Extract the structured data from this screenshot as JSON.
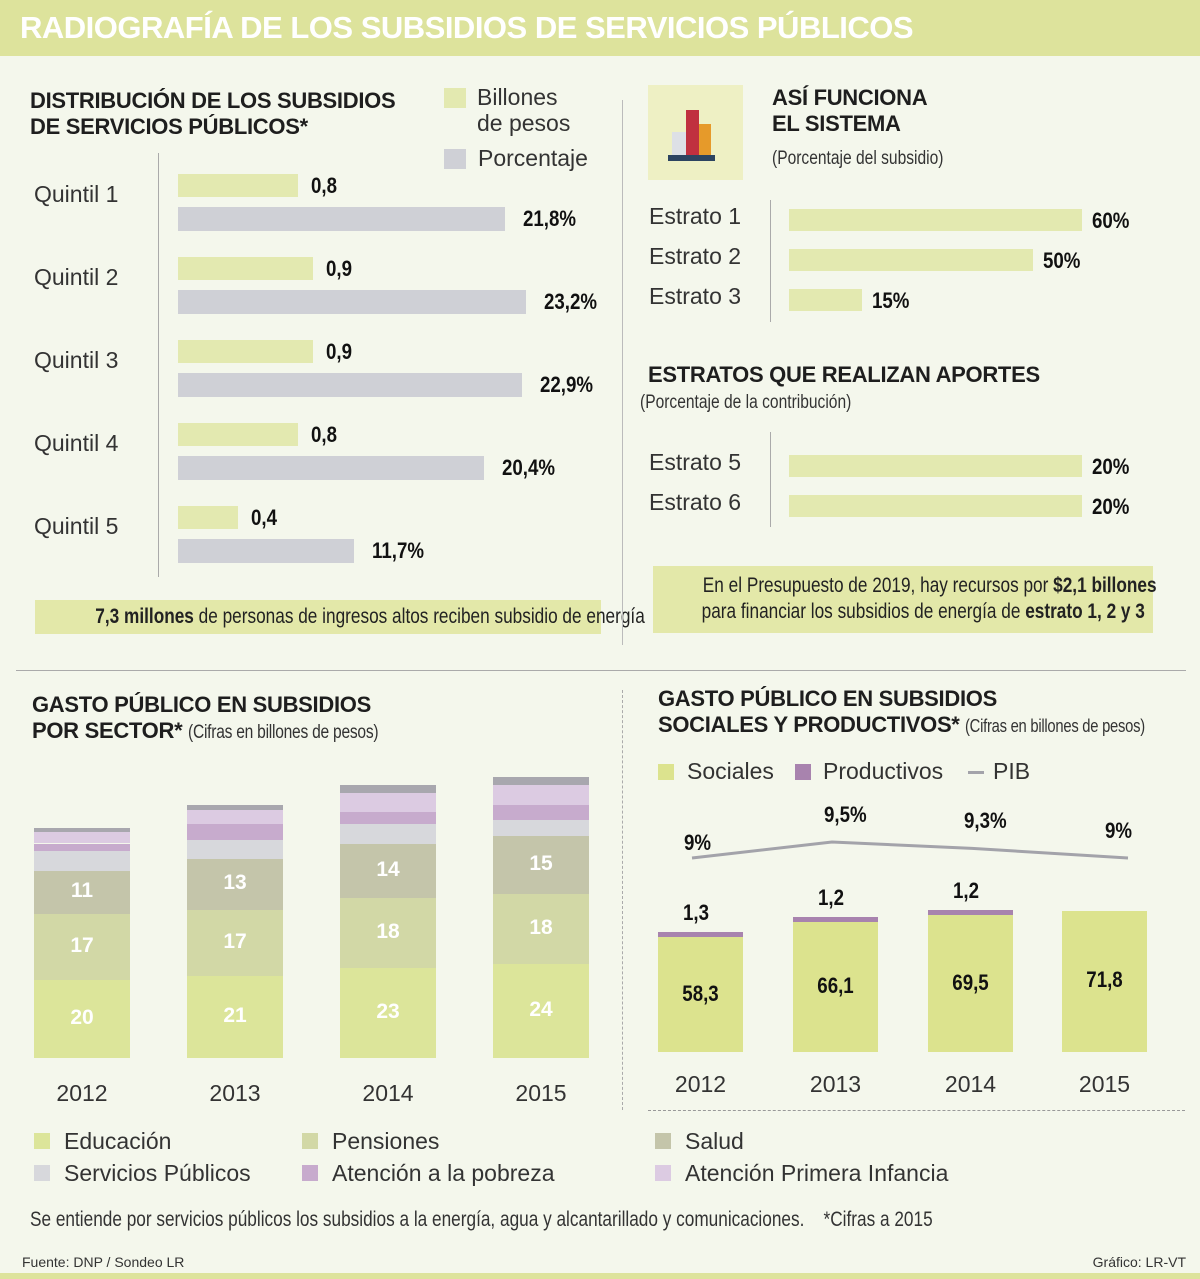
{
  "header": {
    "title": "RADIOGRAFÍA DE LOS SUBSIDIOS DE SERVICIOS PÚBLICOS"
  },
  "colors": {
    "billones": "#e3e9b0",
    "porcentaje": "#cfd0d6",
    "educacion": "#dce59a",
    "pensiones": "#d2d8a6",
    "salud": "#c4c5aa",
    "servicios": "#d7d8dc",
    "pobreza": "#c7abcd",
    "infancia": "#dccbe2",
    "otros": "#a8a7ae",
    "sociales": "#dce38e",
    "productivos": "#a883ae",
    "pib": "#a3a3aa"
  },
  "chart_data": [
    {
      "type": "bar",
      "orientation": "horizontal",
      "title": "DISTRIBUCIÓN DE LOS SUBSIDIOS DE SERVICIOS PÚBLICOS*",
      "categories": [
        "Quintil 1",
        "Quintil 2",
        "Quintil 3",
        "Quintil 4",
        "Quintil 5"
      ],
      "series": [
        {
          "name": "Billones de pesos",
          "values": [
            0.8,
            0.9,
            0.9,
            0.8,
            0.4
          ],
          "labels": [
            "0,8",
            "0,9",
            "0,9",
            "0,8",
            "0,4"
          ]
        },
        {
          "name": "Porcentaje",
          "values": [
            21.8,
            23.2,
            22.9,
            20.4,
            11.7
          ],
          "labels": [
            "21,8%",
            "23,2%",
            "22,9%",
            "20,4%",
            "11,7%"
          ]
        }
      ],
      "legend": "top-right"
    },
    {
      "type": "bar",
      "orientation": "horizontal",
      "title": "ASÍ FUNCIONA EL SISTEMA",
      "subtitle": "(Porcentaje del subsidio)",
      "categories": [
        "Estrato 1",
        "Estrato 2",
        "Estrato 3"
      ],
      "values": [
        60,
        50,
        15
      ],
      "labels": [
        "60%",
        "50%",
        "15%"
      ]
    },
    {
      "type": "bar",
      "orientation": "horizontal",
      "title": "ESTRATOS QUE REALIZAN APORTES",
      "subtitle": "(Porcentaje de la contribución)",
      "categories": [
        "Estrato 5",
        "Estrato 6"
      ],
      "values": [
        20,
        20
      ],
      "labels": [
        "20%",
        "20%"
      ]
    },
    {
      "type": "bar",
      "stacked": true,
      "title": "GASTO PÚBLICO EN SUBSIDIOS POR SECTOR*",
      "subtitle": "(Cifras en billones de pesos)",
      "categories": [
        "2012",
        "2013",
        "2014",
        "2015"
      ],
      "series": [
        {
          "name": "Educación",
          "values": [
            20,
            21,
            23,
            24
          ]
        },
        {
          "name": "Pensiones",
          "values": [
            17,
            17,
            18,
            18
          ]
        },
        {
          "name": "Salud",
          "values": [
            11,
            13,
            14,
            15
          ]
        },
        {
          "name": "Servicios Públicos",
          "values": [
            5,
            5,
            5,
            4
          ]
        },
        {
          "name": "Atención a la pobreza",
          "values": [
            2,
            4,
            3,
            4
          ]
        },
        {
          "name": "Atención Primera Infancia",
          "values": [
            3,
            3.5,
            5,
            5
          ]
        },
        {
          "values": [
            1,
            1.5,
            2,
            2
          ]
        }
      ],
      "legend": "bottom"
    },
    {
      "type": "bar",
      "stacked": true,
      "title": "GASTO PÚBLICO EN SUBSIDIOS SOCIALES Y PRODUCTIVOS*",
      "subtitle": "(Cifras en billones de pesos)",
      "categories": [
        "2012",
        "2013",
        "2014",
        "2015"
      ],
      "series": [
        {
          "name": "Sociales",
          "values": [
            58.3,
            66.1,
            69.5,
            71.8
          ],
          "labels": [
            "58,3",
            "66,1",
            "69,5",
            "71,8"
          ]
        },
        {
          "name": "Productivos",
          "values": [
            1.3,
            1.2,
            1.2,
            null
          ],
          "labels": [
            "1,3",
            "1,2",
            "1,2",
            ""
          ]
        },
        {
          "name": "PIB",
          "type": "line",
          "values": [
            9,
            9.5,
            9.3,
            9
          ],
          "labels": [
            "9%",
            "9,5%",
            "9,3%",
            "9%"
          ]
        }
      ],
      "legend": "top-left"
    }
  ],
  "notes": {
    "energy_bold": "7,3 millones",
    "energy_rest": " de personas de ingresos altos reciben subsidio de energía",
    "budget_a": "En el Presupuesto de 2019, hay recursos por ",
    "budget_b": "$2,1 billones",
    "budget_c": "para financiar los subsidios de energía de ",
    "budget_d": "estrato 1, 2 y 3"
  },
  "titles": {
    "dist1": "DISTRIBUCIÓN DE LOS SUBSIDIOS",
    "dist2": "DE SERVICIOS PÚBLICOS*",
    "sis1": "ASÍ FUNCIONA",
    "sis2": "EL SISTEMA",
    "sector1": "GASTO PÚBLICO EN SUBSIDIOS",
    "sector2": "POR SECTOR*",
    "soc1": "GASTO PÚBLICO EN SUBSIDIOS",
    "soc2": "SOCIALES Y PRODUCTIVOS*"
  },
  "legend1": {
    "a1": "Billones",
    "a2": "de pesos",
    "b": "Porcentaje"
  },
  "footer": {
    "explain": "Se entiende por servicios públicos los subsidios a la energía, agua y alcantarillado y comunicaciones.",
    "cifras": "*Cifras a 2015",
    "source": "Fuente: DNP / Sondeo LR",
    "credit": "Gráfico: LR-VT"
  }
}
